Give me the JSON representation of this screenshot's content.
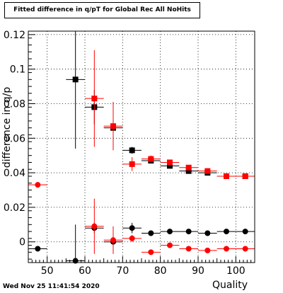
{
  "chart_data": {
    "type": "scatter",
    "title": "Fitted difference in q/pT for Global Rec All NoHits",
    "xlabel": "Quality",
    "ylabel": "difference in q/p",
    "xlim": [
      45,
      105
    ],
    "ylim": [
      -0.012,
      0.122
    ],
    "xticks": [
      50,
      60,
      70,
      80,
      90,
      100
    ],
    "yticks": [
      0,
      0.02,
      0.04,
      0.06,
      0.08,
      0.1,
      0.12
    ],
    "xtick_labels": [
      "50",
      "60",
      "70",
      "80",
      "90",
      "100"
    ],
    "ytick_labels": [
      "0",
      "0.02",
      "0.04",
      "0.06",
      "0.08",
      "0.1",
      "0.12"
    ],
    "grid": true,
    "series": [
      {
        "marker": "square",
        "color": "#000000",
        "points": [
          {
            "x": 57.5,
            "y": 0.094,
            "xerr": 2.5,
            "yerr": 0.04
          },
          {
            "x": 62.5,
            "y": 0.078,
            "xerr": 2.5,
            "yerr": 0.01
          },
          {
            "x": 67.5,
            "y": 0.066,
            "xerr": 2.5,
            "yerr": 0.002
          },
          {
            "x": 72.5,
            "y": 0.053,
            "xerr": 2.5,
            "yerr": 0.002
          },
          {
            "x": 77.5,
            "y": 0.047,
            "xerr": 2.5,
            "yerr": 0.001
          },
          {
            "x": 82.5,
            "y": 0.044,
            "xerr": 2.5,
            "yerr": 0.001
          },
          {
            "x": 87.5,
            "y": 0.041,
            "xerr": 2.5,
            "yerr": 0.001
          },
          {
            "x": 92.5,
            "y": 0.04,
            "xerr": 2.5,
            "yerr": 0.001
          },
          {
            "x": 97.5,
            "y": 0.038,
            "xerr": 2.5,
            "yerr": 0.001
          },
          {
            "x": 102.5,
            "y": 0.038,
            "xerr": 2.5,
            "yerr": 0.001
          }
        ]
      },
      {
        "marker": "square",
        "color": "#ff0000",
        "points": [
          {
            "x": 62.5,
            "y": 0.083,
            "xerr": 2.5,
            "yerr": 0.028
          },
          {
            "x": 67.5,
            "y": 0.067,
            "xerr": 2.5,
            "yerr": 0.014
          },
          {
            "x": 72.5,
            "y": 0.045,
            "xerr": 2.5,
            "yerr": 0.004
          },
          {
            "x": 77.5,
            "y": 0.048,
            "xerr": 2.5,
            "yerr": 0.002
          },
          {
            "x": 82.5,
            "y": 0.046,
            "xerr": 2.5,
            "yerr": 0.001
          },
          {
            "x": 87.5,
            "y": 0.043,
            "xerr": 2.5,
            "yerr": 0.001
          },
          {
            "x": 92.5,
            "y": 0.041,
            "xerr": 2.5,
            "yerr": 0.001
          },
          {
            "x": 97.5,
            "y": 0.038,
            "xerr": 2.5,
            "yerr": 0.001
          },
          {
            "x": 102.5,
            "y": 0.038,
            "xerr": 2.5,
            "yerr": 0.001
          }
        ]
      },
      {
        "marker": "circle",
        "color": "#000000",
        "points": [
          {
            "x": 47.5,
            "y": -0.004,
            "xerr": 2.5,
            "yerr": 0.001
          },
          {
            "x": 57.5,
            "y": -0.011,
            "xerr": 2.5,
            "yerr": 0.021
          },
          {
            "x": 62.5,
            "y": 0.008,
            "xerr": 2.5,
            "yerr": 0.003
          },
          {
            "x": 67.5,
            "y": 0.0,
            "xerr": 2.5,
            "yerr": 0.001
          },
          {
            "x": 72.5,
            "y": 0.008,
            "xerr": 2.5,
            "yerr": 0.003
          },
          {
            "x": 77.5,
            "y": 0.005,
            "xerr": 2.5,
            "yerr": 0.001
          },
          {
            "x": 82.5,
            "y": 0.006,
            "xerr": 2.5,
            "yerr": 0.001
          },
          {
            "x": 87.5,
            "y": 0.006,
            "xerr": 2.5,
            "yerr": 0.001
          },
          {
            "x": 92.5,
            "y": 0.005,
            "xerr": 2.5,
            "yerr": 0.001
          },
          {
            "x": 97.5,
            "y": 0.006,
            "xerr": 2.5,
            "yerr": 0.001
          },
          {
            "x": 102.5,
            "y": 0.006,
            "xerr": 2.5,
            "yerr": 0.001
          }
        ]
      },
      {
        "marker": "circle",
        "color": "#ff0000",
        "points": [
          {
            "x": 47.5,
            "y": 0.033,
            "xerr": 2.5,
            "yerr": 0.001
          },
          {
            "x": 62.5,
            "y": 0.009,
            "xerr": 2.5,
            "yerr": 0.016
          },
          {
            "x": 67.5,
            "y": 0.001,
            "xerr": 2.5,
            "yerr": 0.008
          },
          {
            "x": 72.5,
            "y": 0.002,
            "xerr": 2.5,
            "yerr": 0.002
          },
          {
            "x": 77.5,
            "y": -0.006,
            "xerr": 2.5,
            "yerr": 0.001
          },
          {
            "x": 82.5,
            "y": -0.002,
            "xerr": 2.5,
            "yerr": 0.001
          },
          {
            "x": 87.5,
            "y": -0.004,
            "xerr": 2.5,
            "yerr": 0.001
          },
          {
            "x": 92.5,
            "y": -0.005,
            "xerr": 2.5,
            "yerr": 0.001
          },
          {
            "x": 97.5,
            "y": -0.004,
            "xerr": 2.5,
            "yerr": 0.001
          },
          {
            "x": 102.5,
            "y": -0.004,
            "xerr": 2.5,
            "yerr": 0.001
          }
        ]
      }
    ]
  },
  "footer": {
    "datestamp": "Wed Nov 25 11:41:54 2020"
  }
}
